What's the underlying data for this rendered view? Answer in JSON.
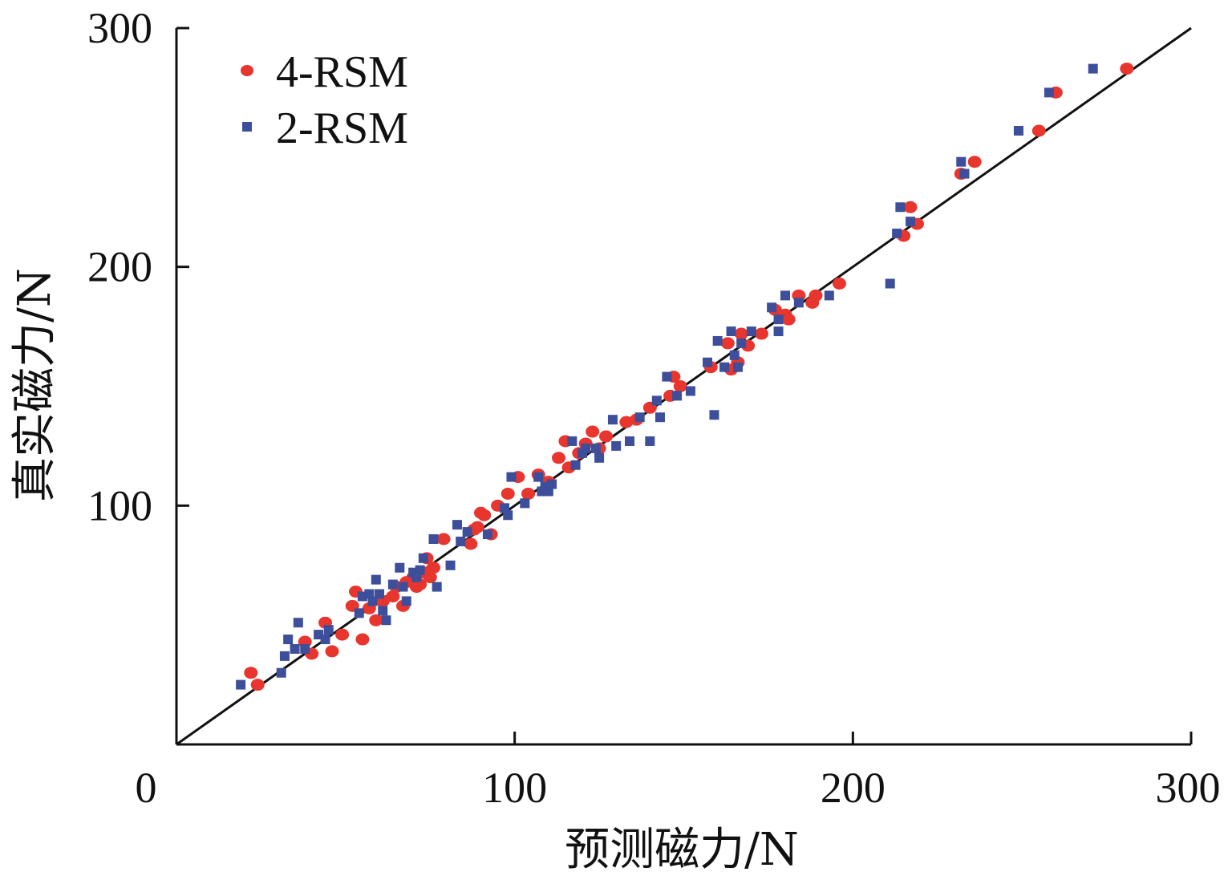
{
  "chart_data": {
    "type": "scatter",
    "title": "",
    "xlabel": "预测磁力/N",
    "ylabel": "真实磁力/N",
    "xlim": [
      0,
      300
    ],
    "ylim": [
      0,
      300
    ],
    "x_ticks": [
      "0",
      "100",
      "200",
      "300"
    ],
    "y_ticks": [
      "100",
      "200",
      "300"
    ],
    "reference_line": {
      "from": [
        0,
        0
      ],
      "to": [
        300,
        300
      ],
      "color": "#111111"
    },
    "legend": {
      "position": "top-left"
    },
    "series": [
      {
        "name": "4-RSM",
        "marker": "circle",
        "color": "#e8352e",
        "points": [
          [
            22,
            30
          ],
          [
            24,
            25
          ],
          [
            38,
            43
          ],
          [
            40,
            38
          ],
          [
            44,
            51
          ],
          [
            46,
            39
          ],
          [
            49,
            46
          ],
          [
            52,
            58
          ],
          [
            53,
            64
          ],
          [
            55,
            44
          ],
          [
            57,
            57
          ],
          [
            59,
            52
          ],
          [
            61,
            60
          ],
          [
            64,
            62
          ],
          [
            65,
            66
          ],
          [
            67,
            58
          ],
          [
            68,
            68
          ],
          [
            70,
            70
          ],
          [
            71,
            66
          ],
          [
            72,
            67
          ],
          [
            73,
            72
          ],
          [
            74,
            78
          ],
          [
            75,
            70
          ],
          [
            76,
            74
          ],
          [
            79,
            86
          ],
          [
            87,
            84
          ],
          [
            88,
            90
          ],
          [
            89,
            91
          ],
          [
            90,
            97
          ],
          [
            91,
            96
          ],
          [
            93,
            88
          ],
          [
            95,
            100
          ],
          [
            98,
            105
          ],
          [
            101,
            112
          ],
          [
            104,
            105
          ],
          [
            107,
            113
          ],
          [
            110,
            110
          ],
          [
            113,
            120
          ],
          [
            115,
            127
          ],
          [
            116,
            116
          ],
          [
            119,
            122
          ],
          [
            121,
            126
          ],
          [
            123,
            131
          ],
          [
            125,
            124
          ],
          [
            127,
            129
          ],
          [
            133,
            135
          ],
          [
            136,
            136
          ],
          [
            140,
            141
          ],
          [
            146,
            146
          ],
          [
            147,
            154
          ],
          [
            149,
            150
          ],
          [
            158,
            158
          ],
          [
            163,
            168
          ],
          [
            164,
            157
          ],
          [
            166,
            160
          ],
          [
            167,
            172
          ],
          [
            169,
            167
          ],
          [
            173,
            172
          ],
          [
            177,
            182
          ],
          [
            180,
            180
          ],
          [
            181,
            178
          ],
          [
            184,
            188
          ],
          [
            188,
            185
          ],
          [
            189,
            188
          ],
          [
            196,
            193
          ],
          [
            215,
            213
          ],
          [
            217,
            225
          ],
          [
            219,
            218
          ],
          [
            232,
            239
          ],
          [
            236,
            244
          ],
          [
            255,
            257
          ],
          [
            260,
            273
          ],
          [
            281,
            283
          ]
        ]
      },
      {
        "name": "2-RSM",
        "marker": "square",
        "color": "#3d4f9a",
        "points": [
          [
            19,
            25
          ],
          [
            31,
            30
          ],
          [
            32,
            37
          ],
          [
            33,
            44
          ],
          [
            35,
            40
          ],
          [
            36,
            51
          ],
          [
            38,
            40
          ],
          [
            42,
            46
          ],
          [
            44,
            44
          ],
          [
            45,
            48
          ],
          [
            54,
            55
          ],
          [
            55,
            62
          ],
          [
            57,
            63
          ],
          [
            58,
            60
          ],
          [
            59,
            69
          ],
          [
            60,
            63
          ],
          [
            61,
            56
          ],
          [
            62,
            52
          ],
          [
            64,
            67
          ],
          [
            66,
            74
          ],
          [
            67,
            66
          ],
          [
            68,
            60
          ],
          [
            70,
            72
          ],
          [
            71,
            70
          ],
          [
            72,
            73
          ],
          [
            73,
            78
          ],
          [
            76,
            86
          ],
          [
            77,
            66
          ],
          [
            81,
            75
          ],
          [
            83,
            92
          ],
          [
            84,
            85
          ],
          [
            86,
            89
          ],
          [
            92,
            88
          ],
          [
            97,
            99
          ],
          [
            98,
            96
          ],
          [
            99,
            112
          ],
          [
            103,
            101
          ],
          [
            107,
            112
          ],
          [
            108,
            106
          ],
          [
            109,
            108
          ],
          [
            110,
            106
          ],
          [
            111,
            109
          ],
          [
            117,
            127
          ],
          [
            118,
            117
          ],
          [
            120,
            122
          ],
          [
            121,
            124
          ],
          [
            124,
            124
          ],
          [
            125,
            120
          ],
          [
            129,
            136
          ],
          [
            130,
            125
          ],
          [
            134,
            127
          ],
          [
            137,
            137
          ],
          [
            140,
            127
          ],
          [
            142,
            144
          ],
          [
            143,
            137
          ],
          [
            145,
            154
          ],
          [
            148,
            146
          ],
          [
            152,
            148
          ],
          [
            157,
            160
          ],
          [
            159,
            138
          ],
          [
            160,
            169
          ],
          [
            162,
            158
          ],
          [
            164,
            173
          ],
          [
            165,
            163
          ],
          [
            166,
            158
          ],
          [
            167,
            168
          ],
          [
            170,
            173
          ],
          [
            176,
            183
          ],
          [
            178,
            178
          ],
          [
            178,
            173
          ],
          [
            180,
            188
          ],
          [
            184,
            185
          ],
          [
            193,
            188
          ],
          [
            211,
            193
          ],
          [
            213,
            214
          ],
          [
            214,
            225
          ],
          [
            217,
            219
          ],
          [
            232,
            244
          ],
          [
            233,
            239
          ],
          [
            249,
            257
          ],
          [
            258,
            273
          ],
          [
            271,
            283
          ]
        ]
      }
    ]
  }
}
